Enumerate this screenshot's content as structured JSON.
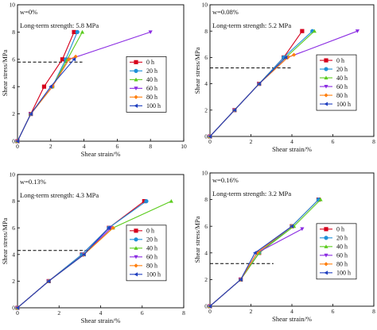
{
  "chart_data": [
    {
      "type": "line",
      "title": "",
      "xlabel": "Shear strain/%",
      "ylabel": "Shear stress/MPa",
      "xlim": [
        0,
        10
      ],
      "ylim": [
        0,
        10
      ],
      "xticks": [
        "0",
        "2",
        "4",
        "6",
        "8",
        "10"
      ],
      "yticks": [
        "0",
        "2",
        "4",
        "6",
        "8",
        "10"
      ],
      "annotation_1": "w=0%",
      "annotation_2": "Long-term strength: 5.8 MPa",
      "long_term_strength": 5.8,
      "dash_x_end": 3.9,
      "legend_position": "right",
      "series": [
        {
          "name": "0 h",
          "color": "#d6001c",
          "marker": "square",
          "x": [
            0,
            0.8,
            1.6,
            2.7,
            3.4
          ],
          "y": [
            0,
            2,
            4,
            6,
            8
          ]
        },
        {
          "name": "20 h",
          "color": "#1e90d8",
          "marker": "circle",
          "x": [
            0,
            0.8,
            2.1,
            2.9,
            3.6
          ],
          "y": [
            0,
            2,
            4,
            6,
            8
          ]
        },
        {
          "name": "40 h",
          "color": "#5ccc1e",
          "marker": "triangle-up",
          "x": [
            0,
            0.8,
            2.1,
            3.0,
            3.9
          ],
          "y": [
            0,
            2,
            4,
            6,
            8
          ]
        },
        {
          "name": "60 h",
          "color": "#8a2be2",
          "marker": "triangle-down",
          "x": [
            0,
            0.8,
            2.1,
            3.1,
            8.0
          ],
          "y": [
            0,
            2,
            4,
            6,
            8
          ]
        },
        {
          "name": "80 h",
          "color": "#ff7f0e",
          "marker": "diamond",
          "x": [
            0,
            0.8,
            2.1,
            3.1,
            3.5
          ],
          "y": [
            0,
            2,
            4,
            6,
            6.2
          ]
        },
        {
          "name": "100 h",
          "color": "#1f3fbf",
          "marker": "triangle-left",
          "x": [
            0,
            0.8,
            2.0,
            3.4
          ],
          "y": [
            0,
            2,
            4,
            6
          ]
        }
      ]
    },
    {
      "type": "line",
      "title": "",
      "xlabel": "Shear strain/%",
      "ylabel": "Shear stress/MPa",
      "xlim": [
        0,
        8
      ],
      "ylim": [
        0,
        10
      ],
      "xticks": [
        "0",
        "2",
        "4",
        "6",
        "8"
      ],
      "yticks": [
        "0",
        "2",
        "4",
        "6",
        "8",
        "10"
      ],
      "annotation_1": "w=0.08%",
      "annotation_2": "Long-term strength: 5.2 MPa",
      "long_term_strength": 5.2,
      "dash_x_end": 4.0,
      "legend_position": "right",
      "series": [
        {
          "name": "0 h",
          "color": "#d6001c",
          "marker": "square",
          "x": [
            0,
            1.2,
            2.4,
            3.6,
            4.5
          ],
          "y": [
            0,
            2,
            4,
            6,
            8
          ]
        },
        {
          "name": "20 h",
          "color": "#1e90d8",
          "marker": "circle",
          "x": [
            0,
            1.2,
            2.4,
            3.6,
            5.0
          ],
          "y": [
            0,
            2,
            4,
            6,
            8
          ]
        },
        {
          "name": "40 h",
          "color": "#5ccc1e",
          "marker": "triangle-up",
          "x": [
            0,
            1.2,
            2.4,
            3.7,
            5.1
          ],
          "y": [
            0,
            2,
            4,
            6,
            8
          ]
        },
        {
          "name": "60 h",
          "color": "#8a2be2",
          "marker": "triangle-down",
          "x": [
            0,
            1.2,
            2.4,
            3.8,
            7.2
          ],
          "y": [
            0,
            2,
            4,
            6,
            8
          ]
        },
        {
          "name": "80 h",
          "color": "#ff7f0e",
          "marker": "diamond",
          "x": [
            0,
            1.2,
            2.4,
            3.8,
            4.1
          ],
          "y": [
            0,
            2,
            4,
            6,
            6.2
          ]
        },
        {
          "name": "100 h",
          "color": "#1f3fbf",
          "marker": "triangle-left",
          "x": [
            0,
            1.2,
            2.4,
            3.7
          ],
          "y": [
            0,
            2,
            4,
            6
          ]
        }
      ]
    },
    {
      "type": "line",
      "title": "",
      "xlabel": "Shear strain/%",
      "ylabel": "Shear stress/MPa",
      "xlim": [
        0,
        8
      ],
      "ylim": [
        0,
        10
      ],
      "xticks": [
        "0",
        "2",
        "4",
        "6",
        "8"
      ],
      "yticks": [
        "0",
        "2",
        "4",
        "6",
        "8",
        "10"
      ],
      "annotation_1": "w=0.13%",
      "annotation_2": "Long-term strength: 4.3 MPa",
      "long_term_strength": 4.3,
      "dash_x_end": 3.4,
      "legend_position": "right",
      "series": [
        {
          "name": "0 h",
          "color": "#d6001c",
          "marker": "square",
          "x": [
            0,
            1.5,
            3.1,
            4.4,
            6.1
          ],
          "y": [
            0,
            2,
            4,
            6,
            8
          ]
        },
        {
          "name": "20 h",
          "color": "#1e90d8",
          "marker": "circle",
          "x": [
            0,
            1.5,
            3.1,
            4.4,
            6.2
          ],
          "y": [
            0,
            2,
            4,
            6,
            8
          ]
        },
        {
          "name": "40 h",
          "color": "#5ccc1e",
          "marker": "triangle-up",
          "x": [
            0,
            1.5,
            3.2,
            4.6,
            7.4
          ],
          "y": [
            0,
            2,
            4,
            6,
            8
          ]
        },
        {
          "name": "60 h",
          "color": "#8a2be2",
          "marker": "triangle-down",
          "x": [
            0,
            1.5,
            3.2,
            4.5
          ],
          "y": [
            0,
            2,
            4,
            6
          ]
        },
        {
          "name": "80 h",
          "color": "#ff7f0e",
          "marker": "diamond",
          "x": [
            0,
            1.5,
            3.2,
            4.6
          ],
          "y": [
            0,
            2,
            4,
            6
          ]
        },
        {
          "name": "100 h",
          "color": "#1f3fbf",
          "marker": "triangle-left",
          "x": [
            0,
            1.5,
            3.2,
            4.4
          ],
          "y": [
            0,
            2,
            4,
            6
          ]
        }
      ]
    },
    {
      "type": "line",
      "title": "",
      "xlabel": "Shear strain/%",
      "ylabel": "Shear stress/MPa",
      "xlim": [
        0,
        8
      ],
      "ylim": [
        0,
        10
      ],
      "xticks": [
        "0",
        "2",
        "4",
        "6",
        "8"
      ],
      "yticks": [
        "0",
        "2",
        "4",
        "6",
        "8",
        "10"
      ],
      "annotation_1": "w=0.16%",
      "annotation_2": "Long-term strength: 3.2 MPa",
      "long_term_strength": 3.2,
      "dash_x_end": 3.1,
      "legend_position": "right",
      "series": [
        {
          "name": "0 h",
          "color": "#d6001c",
          "marker": "square",
          "x": [
            0,
            1.5,
            2.4,
            4.0,
            5.3
          ],
          "y": [
            0,
            2,
            4,
            6,
            8
          ]
        },
        {
          "name": "20 h",
          "color": "#1e90d8",
          "marker": "circle",
          "x": [
            0,
            1.5,
            2.4,
            4.0,
            5.3
          ],
          "y": [
            0,
            2,
            4,
            6,
            8
          ]
        },
        {
          "name": "40 h",
          "color": "#5ccc1e",
          "marker": "triangle-up",
          "x": [
            0,
            1.5,
            2.4,
            4.1,
            5.4
          ],
          "y": [
            0,
            2,
            4,
            6,
            8
          ]
        },
        {
          "name": "60 h",
          "color": "#8a2be2",
          "marker": "triangle-down",
          "x": [
            0,
            1.5,
            2.3,
            4.5
          ],
          "y": [
            0,
            2,
            4,
            5.8
          ]
        },
        {
          "name": "80 h",
          "color": "#ff7f0e",
          "marker": "diamond",
          "x": [
            0,
            1.5,
            2.3,
            4.0
          ],
          "y": [
            0,
            2,
            4,
            6
          ]
        },
        {
          "name": "100 h",
          "color": "#1f3fbf",
          "marker": "triangle-left",
          "x": [
            0,
            1.5,
            2.2,
            4.0
          ],
          "y": [
            0,
            2,
            4,
            6
          ]
        }
      ]
    }
  ]
}
